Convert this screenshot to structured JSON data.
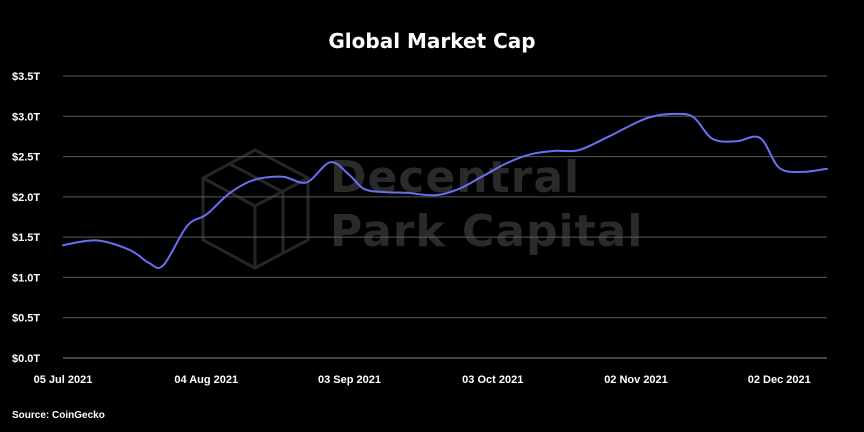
{
  "chart_data": {
    "type": "line",
    "title": "Global Market Cap",
    "xlabel": "",
    "ylabel": "",
    "x_tick_labels": [
      "05 Jul 2021",
      "04 Aug 2021",
      "03 Sep 2021",
      "03 Oct 2021",
      "02 Nov 2021",
      "02 Dec 2021"
    ],
    "y_tick_labels": [
      "$0.0T",
      "$0.5T",
      "$1.0T",
      "$1.5T",
      "$2.0T",
      "$2.5T",
      "$3.0T",
      "$3.5T"
    ],
    "ylim": [
      0,
      3.5
    ],
    "xlim": [
      "2021-07-05",
      "2021-12-12"
    ],
    "grid": true,
    "legend": "none",
    "series": [
      {
        "color": "#6b6ff2",
        "x": [
          "2021-07-05",
          "2021-07-12",
          "2021-07-19",
          "2021-07-23",
          "2021-07-26",
          "2021-07-31",
          "2021-08-04",
          "2021-08-09",
          "2021-08-14",
          "2021-08-20",
          "2021-08-25",
          "2021-08-30",
          "2021-09-03",
          "2021-09-06",
          "2021-09-10",
          "2021-09-15",
          "2021-09-21",
          "2021-09-26",
          "2021-10-01",
          "2021-10-06",
          "2021-10-11",
          "2021-10-16",
          "2021-10-21",
          "2021-10-27",
          "2021-11-01",
          "2021-11-05",
          "2021-11-10",
          "2021-11-14",
          "2021-11-18",
          "2021-11-23",
          "2021-11-28",
          "2021-12-02",
          "2021-12-07",
          "2021-12-12"
        ],
        "y": [
          1.4,
          1.46,
          1.34,
          1.18,
          1.15,
          1.64,
          1.78,
          2.05,
          2.21,
          2.25,
          2.18,
          2.43,
          2.27,
          2.1,
          2.06,
          2.05,
          2.02,
          2.1,
          2.26,
          2.42,
          2.53,
          2.57,
          2.58,
          2.74,
          2.89,
          2.99,
          3.03,
          2.99,
          2.72,
          2.69,
          2.73,
          2.36,
          2.31,
          2.35
        ]
      }
    ]
  },
  "watermark": {
    "line1": "Decentral",
    "line2": "Park Capital"
  },
  "source": "Source: CoinGecko"
}
